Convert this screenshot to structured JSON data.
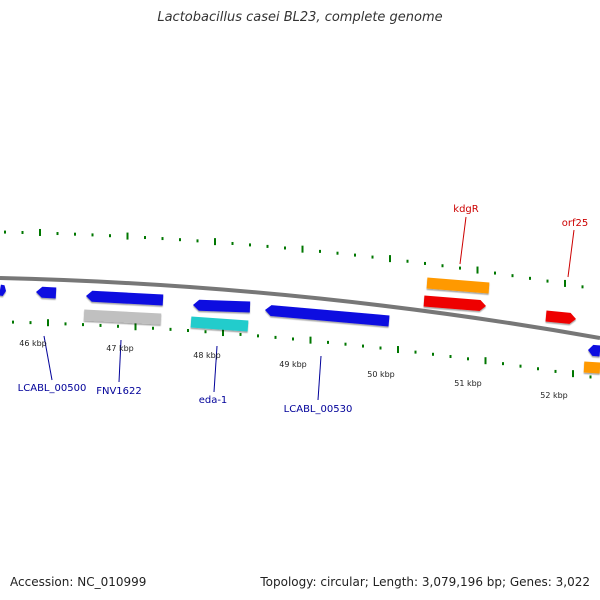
{
  "title": "Lactobacillus casei BL23, complete genome",
  "footer": {
    "accession": "Accession: NC_010999",
    "summary": "Topology: circular; Length: 3,079,196 bp; Genes: 3,022"
  },
  "colors": {
    "blue": "#1010e0",
    "red": "#ee0000",
    "orange": "#ff9900",
    "cyan": "#22cccc",
    "gray": "#c0c0c0",
    "backbone": "#777777",
    "tick": "#007700",
    "label_blue": "#000099",
    "label_red": "#cc0000"
  },
  "kbp_labels": [
    "46 kbp",
    "47 kbp",
    "48 kbp",
    "49 kbp",
    "50 kbp",
    "51 kbp",
    "52 kbp"
  ],
  "gene_labels": [
    {
      "text": "LCABL_00500",
      "color": "blue"
    },
    {
      "text": "FNV1622",
      "color": "blue"
    },
    {
      "text": "eda-1",
      "color": "blue"
    },
    {
      "text": "LCABL_00530",
      "color": "blue"
    },
    {
      "text": "kdgR",
      "color": "red"
    },
    {
      "text": "orf25",
      "color": "red"
    }
  ]
}
